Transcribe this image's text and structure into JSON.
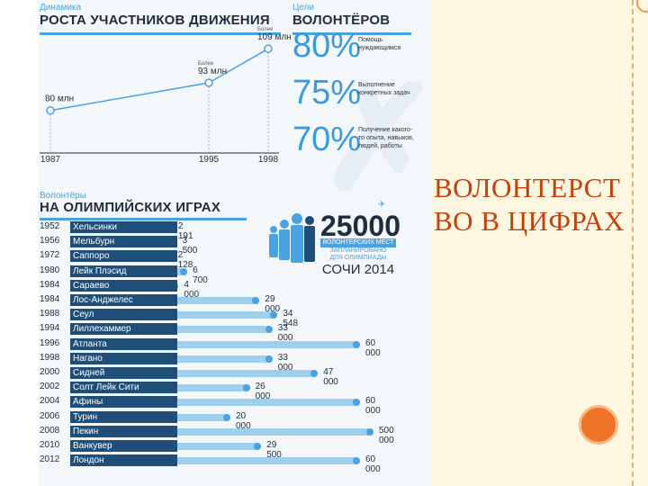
{
  "growth": {
    "eyebrow": "Динамика",
    "title": "РОСТА УЧАСТНИКОВ ДВИЖЕНИЯ",
    "chart_data": {
      "type": "line",
      "x": [
        1987,
        1995,
        1998
      ],
      "values": [
        80,
        93,
        109
      ],
      "tick_labels": [
        "1987",
        "1995",
        "1998"
      ],
      "point_labels": [
        {
          "prefix": "",
          "value": "80 млн"
        },
        {
          "prefix": "Более",
          "value": "93 млн"
        },
        {
          "prefix": "Более",
          "value": "109 млн"
        }
      ],
      "ylim": [
        60,
        115
      ]
    }
  },
  "goals": {
    "eyebrow": "Цели",
    "title": "ВОЛОНТЁРОВ",
    "items": [
      {
        "pct": "80%",
        "text": "Помощь нуждающимся"
      },
      {
        "pct": "75%",
        "text": "Выполнение конкретных задач"
      },
      {
        "pct": "70%",
        "text": "Получение какого-то опыта, навыков, людей, работы"
      }
    ]
  },
  "olympics": {
    "eyebrow": "Волонтёры",
    "title": "НА ОЛИМПИЙСКИХ ИГРАХ",
    "chart_data": {
      "type": "bar",
      "orientation": "horizontal",
      "rows": [
        {
          "year": "1952",
          "city": "Хельсинки",
          "value": 2191,
          "label": "2 191"
        },
        {
          "year": "1956",
          "city": "Мельбурн",
          "value": 3500,
          "label": "3 500"
        },
        {
          "year": "1972",
          "city": "Саппоро",
          "value": 2128,
          "label": "2 128"
        },
        {
          "year": "1980",
          "city": "Лейк Плэсид",
          "value": 6700,
          "label": "6 700"
        },
        {
          "year": "1984",
          "city": "Сараево",
          "value": 4000,
          "label": "4 000"
        },
        {
          "year": "1984",
          "city": "Лос-Анджелес",
          "value": 29000,
          "label": "29 000"
        },
        {
          "year": "1988",
          "city": "Сеул",
          "value": 34548,
          "label": "34 548"
        },
        {
          "year": "1994",
          "city": "Лиллехаммер",
          "value": 33000,
          "label": "33 000"
        },
        {
          "year": "1996",
          "city": "Атланта",
          "value": 60000,
          "label": "60 000"
        },
        {
          "year": "1998",
          "city": "Нагано",
          "value": 33000,
          "label": "33 000"
        },
        {
          "year": "2000",
          "city": "Сидней",
          "value": 47000,
          "label": "47 000"
        },
        {
          "year": "2002",
          "city": "Солт Лейк Сити",
          "value": 26000,
          "label": "26 000"
        },
        {
          "year": "2004",
          "city": "Афины",
          "value": 60000,
          "label": "60 000"
        },
        {
          "year": "2006",
          "city": "Турин",
          "value": 20000,
          "label": "20 000"
        },
        {
          "year": "2008",
          "city": "Пекин",
          "value": 500000,
          "label": "500 000"
        },
        {
          "year": "2010",
          "city": "Ванкувер",
          "value": 29500,
          "label": "29 500"
        },
        {
          "year": "2012",
          "city": "Лондон",
          "value": 60000,
          "label": "60 000"
        }
      ]
    },
    "stat": {
      "number": "25000",
      "band": "ВОЛОНТЕРСКИХ МЕСТ",
      "line2": "ЗАПЛАНИРОВАНО",
      "line3": "ДЛЯ ОЛИМПИАДЫ",
      "sochi": "СОЧИ 2014"
    }
  },
  "slide": {
    "title_line1": "ВОЛОНТЕРСТ",
    "title_line2": "ВО В ЦИФРАХ"
  },
  "colors": {
    "accent": "#4aa3df",
    "navy": "#1f4e79",
    "title": "#c2410c",
    "orange": "#f0732a"
  }
}
